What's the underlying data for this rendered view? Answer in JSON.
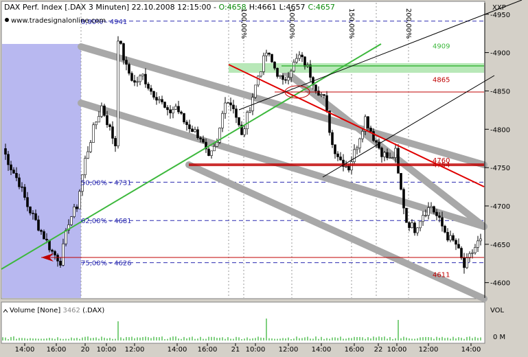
{
  "header": {
    "title_prefix": "DAX Perf. Index [.DAX  3 Minuten] 22.10.2008 12:15:00 - ",
    "open_label": "O:4658",
    "high_label": "H:4661",
    "low_label": "L:4657",
    "close_label": "C:4657",
    "website": "www.tradesignalonline.com",
    "symbol_tag": "XXP"
  },
  "colors": {
    "background": "#ffffff",
    "frame": "#d4d0c8",
    "candle": "#000000",
    "fib_line": "#2a2ab0",
    "support_line": "#c00000",
    "trend_green": "#3cb83c",
    "channel_gray": "#a8a8a8",
    "shade_blue": "#b8b8f0",
    "volume_green": "#00a000"
  },
  "fib_labels": [
    {
      "id": "f0",
      "text": "0,00% - 4941",
      "price": 4941
    },
    {
      "id": "f50",
      "text": "50,00% - 4731",
      "price": 4731
    },
    {
      "id": "f62",
      "text": "62,00% - 4681",
      "price": 4681
    },
    {
      "id": "f75",
      "text": "75,00% - 4626",
      "price": 4626
    }
  ],
  "level_labels": [
    {
      "id": "l4909",
      "text": "4909",
      "price": 4909,
      "color": "#3cb83c"
    },
    {
      "id": "l4865",
      "text": "4865",
      "price": 4865,
      "color": "#c00000"
    },
    {
      "id": "l4760",
      "text": "4760",
      "price": 4760,
      "color": "#c00000"
    },
    {
      "id": "l4754",
      "text": "4754",
      "price": 4754,
      "color": "#c00000"
    },
    {
      "id": "l4611",
      "text": "4611",
      "price": 4611,
      "color": "#c00000"
    }
  ],
  "pct_labels": [
    "100,00%",
    "100,00%",
    "150,00%",
    "200,00%"
  ],
  "volume": {
    "label": "Volume [None] ",
    "value": "3462",
    "suffix": " (.DAX)",
    "axis_title": "VOL",
    "axis_zero": "0 M"
  },
  "chart_data": {
    "type": "candlestick",
    "title": "DAX Perf. Index [.DAX  3 Minuten] 22.10.2008 12:15:00",
    "ylim": [
      4580,
      4965
    ],
    "y_ticks": [
      4950,
      4900,
      4850,
      4800,
      4750,
      4700,
      4650,
      4600
    ],
    "x_tick_labels": [
      "14:00",
      "16:00",
      "20",
      "10:00",
      "12:00",
      "14:00",
      "16:00",
      "21",
      "10:00",
      "12:00",
      "14:00",
      "16:00",
      "22",
      "10:00",
      "12:00",
      "14:00"
    ],
    "ohlc_path": [
      [
        0,
        4775
      ],
      [
        3,
        4750
      ],
      [
        6,
        4730
      ],
      [
        9,
        4700
      ],
      [
        12,
        4680
      ],
      [
        15,
        4660
      ],
      [
        18,
        4640
      ],
      [
        21,
        4628
      ],
      [
        24,
        4680
      ],
      [
        27,
        4700
      ],
      [
        30,
        4760
      ],
      [
        33,
        4800
      ],
      [
        36,
        4830
      ],
      [
        39,
        4800
      ],
      [
        41,
        4780
      ],
      [
        42,
        4920
      ],
      [
        45,
        4880
      ],
      [
        48,
        4860
      ],
      [
        51,
        4870
      ],
      [
        54,
        4850
      ],
      [
        57,
        4840
      ],
      [
        60,
        4820
      ],
      [
        63,
        4830
      ],
      [
        66,
        4810
      ],
      [
        69,
        4800
      ],
      [
        72,
        4790
      ],
      [
        75,
        4760
      ],
      [
        78,
        4780
      ],
      [
        81,
        4840
      ],
      [
        84,
        4830
      ],
      [
        87,
        4790
      ],
      [
        90,
        4830
      ],
      [
        93,
        4870
      ],
      [
        96,
        4900
      ],
      [
        99,
        4880
      ],
      [
        102,
        4860
      ],
      [
        105,
        4880
      ],
      [
        108,
        4895
      ],
      [
        111,
        4880
      ],
      [
        114,
        4855
      ],
      [
        117,
        4840
      ],
      [
        120,
        4780
      ],
      [
        123,
        4760
      ],
      [
        126,
        4750
      ],
      [
        129,
        4780
      ],
      [
        132,
        4815
      ],
      [
        135,
        4790
      ],
      [
        138,
        4770
      ],
      [
        141,
        4760
      ],
      [
        143,
        4770
      ],
      [
        144,
        4740
      ],
      [
        147,
        4680
      ],
      [
        150,
        4670
      ],
      [
        153,
        4690
      ],
      [
        156,
        4700
      ],
      [
        159,
        4680
      ],
      [
        162,
        4660
      ],
      [
        165,
        4650
      ],
      [
        168,
        4620
      ],
      [
        171,
        4640
      ],
      [
        174,
        4658
      ]
    ],
    "last": {
      "open": 4658,
      "high": 4661,
      "low": 4657,
      "close": 4657
    }
  }
}
